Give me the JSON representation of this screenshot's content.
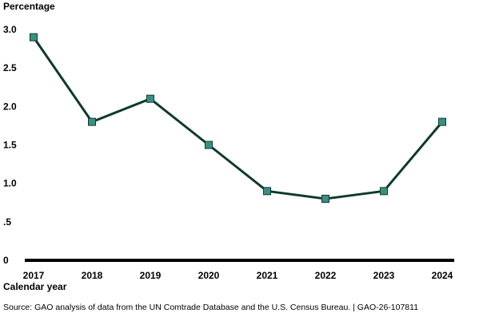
{
  "chart_data": {
    "type": "line",
    "title": "",
    "ylabel": "Percentage",
    "xlabel": "Calendar year",
    "x": [
      "2017",
      "2018",
      "2019",
      "2020",
      "2021",
      "2022",
      "2023",
      "2024"
    ],
    "series": [
      {
        "values": [
          2.9,
          1.8,
          2.1,
          1.5,
          0.9,
          0.8,
          0.9,
          1.8
        ]
      }
    ],
    "ylim": [
      0,
      3.0
    ],
    "yticks": [
      {
        "value": 0,
        "label": "0"
      },
      {
        "value": 0.5,
        "label": ".5"
      },
      {
        "value": 1.0,
        "label": "1.0"
      },
      {
        "value": 1.5,
        "label": "1.5"
      },
      {
        "value": 2.0,
        "label": "2.0"
      },
      {
        "value": 2.5,
        "label": "2.5"
      },
      {
        "value": 3.0,
        "label": "3.0"
      }
    ],
    "grid": false,
    "line_color": "#0d3b2a",
    "marker_color": "#3a8f84"
  },
  "source": "Source: GAO analysis of data from the UN Comtrade Database and the U.S. Census Bureau.  |  GAO-26-107811"
}
